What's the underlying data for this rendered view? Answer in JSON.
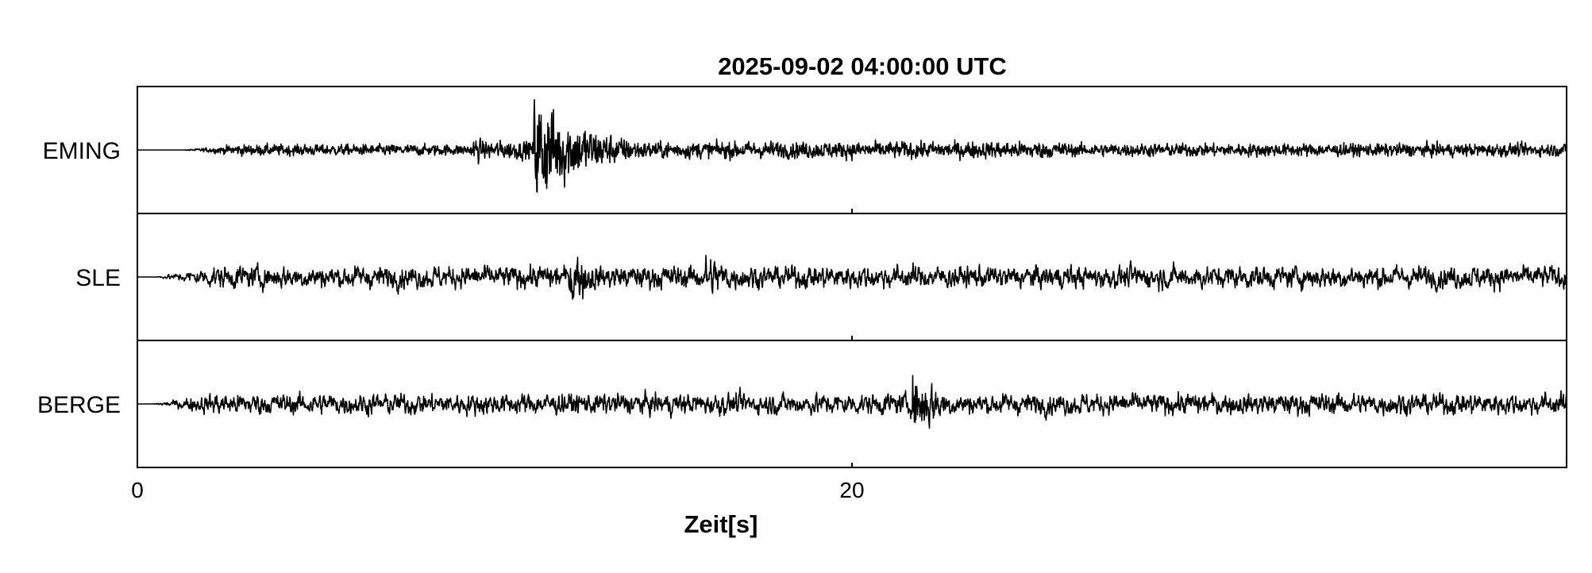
{
  "chart_data": {
    "type": "line",
    "title": "2025-09-02  04:00:00 UTC",
    "xlabel": "Zeit[s]",
    "ylabel": "",
    "xlim": [
      0,
      40
    ],
    "x_ticks": [
      0,
      20
    ],
    "x_tick_labels": [
      "0",
      "20"
    ],
    "grid": false,
    "series": [
      {
        "name": "EMING"
      },
      {
        "name": "SLE"
      },
      {
        "name": "BERGE"
      }
    ],
    "line_color": "#000000"
  }
}
